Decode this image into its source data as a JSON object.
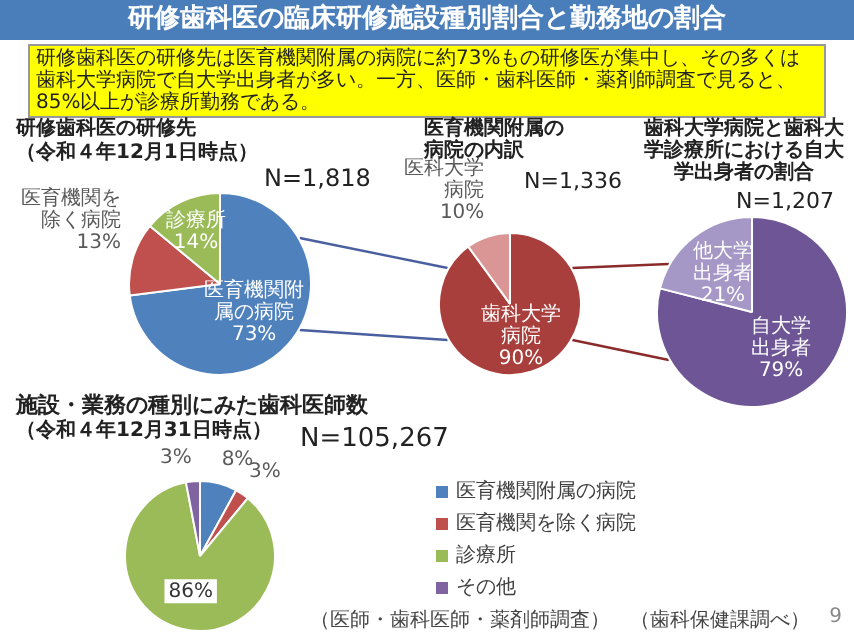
{
  "chart_data": [
    {
      "type": "pie",
      "title": "研修歯科医の研修先",
      "subtitle": "（令和４年12月1日時点）",
      "annotations": [
        "研修歯科医の臨床研修施設種別割合と勤務地の割合",
        "研修歯科医の研修先は医育機関附属の病院に約73%もの研修医が集中し、その多くは歯科大学病院で自大学出身者が多い。一方、医師・歯科医師・薬剤師調査で見ると、85%以上が診療所勤務である。",
        "N=1,818"
      ],
      "categories": [
        "医育機関附属の病院",
        "医育機関を除く病院",
        "診療所"
      ],
      "values": [
        73,
        13,
        14
      ],
      "value_labels": [
        "73%",
        "13%",
        "14%"
      ],
      "colors": [
        "#4f81bd",
        "#c0504d",
        "#9bbb59"
      ]
    },
    {
      "type": "pie",
      "title": "医育機関附属の病院の内訳",
      "annotations": [
        "N=1,336"
      ],
      "categories": [
        "歯科大学病院",
        "医科大学病院"
      ],
      "values": [
        90,
        10
      ],
      "value_labels": [
        "90%",
        "10%"
      ],
      "colors": [
        "#a93f3c",
        "#d99694"
      ]
    },
    {
      "type": "pie",
      "title": "歯科大学病院と歯科大学診療所における自大学出身者の割合",
      "annotations": [
        "N=1,207"
      ],
      "categories": [
        "自大学出身者",
        "他大学出身者"
      ],
      "values": [
        79,
        21
      ],
      "value_labels": [
        "79%",
        "21%"
      ],
      "colors": [
        "#6d5596",
        "#a597c6"
      ]
    },
    {
      "type": "pie",
      "title": "施設・業務の種別にみた歯科医師数",
      "subtitle": "（令和４年12月31日時点）",
      "annotations": [
        "N=105,267",
        "（医師・歯科医師・薬剤師調査）　（歯科保健課調べ）",
        "9"
      ],
      "categories": [
        "医育機関附属の病院",
        "医育機関を除く病院",
        "診療所",
        "その他"
      ],
      "values": [
        8,
        3,
        86,
        3
      ],
      "value_labels": [
        "8%",
        "3%",
        "86%",
        "3%"
      ],
      "colors": [
        "#4f81bd",
        "#c0504d",
        "#9bbb59",
        "#8064a2"
      ],
      "legend": "right"
    }
  ]
}
